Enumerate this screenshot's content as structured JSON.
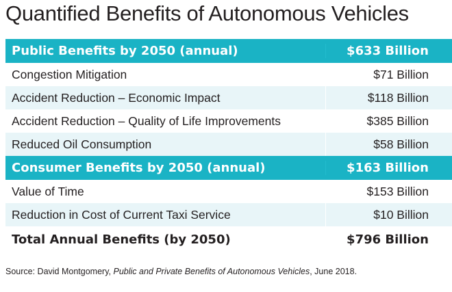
{
  "title": "Quantified Benefits of Autonomous Vehicles",
  "colors": {
    "header_bg": "#1ab3c5",
    "alt_row_bg": "#e8f5f8",
    "text": "#231f20"
  },
  "sections": [
    {
      "header": {
        "label": "Public Benefits by 2050 (annual)",
        "value": "$633 Billion"
      },
      "rows": [
        {
          "label": "Congestion Mitigation",
          "value": "$71 Billion"
        },
        {
          "label": "Accident Reduction – Economic Impact",
          "value": "$118 Billion"
        },
        {
          "label": "Accident Reduction – Quality of Life Improvements",
          "value": "$385 Billion"
        },
        {
          "label": "Reduced Oil Consumption",
          "value": "$58 Billion"
        }
      ]
    },
    {
      "header": {
        "label": "Consumer Benefits by 2050 (annual)",
        "value": "$163 Billion"
      },
      "rows": [
        {
          "label": "Value of Time",
          "value": "$153 Billion"
        },
        {
          "label": "Reduction in Cost of Current Taxi Service",
          "value": "$10 Billion"
        }
      ]
    }
  ],
  "total": {
    "label": "Total Annual Benefits (by 2050)",
    "value": "$796 Billion"
  },
  "source": {
    "prefix": "Source: David Montgomery, ",
    "work": "Public and Private Benefits of Autonomous Vehicles",
    "suffix": ", June 2018."
  }
}
